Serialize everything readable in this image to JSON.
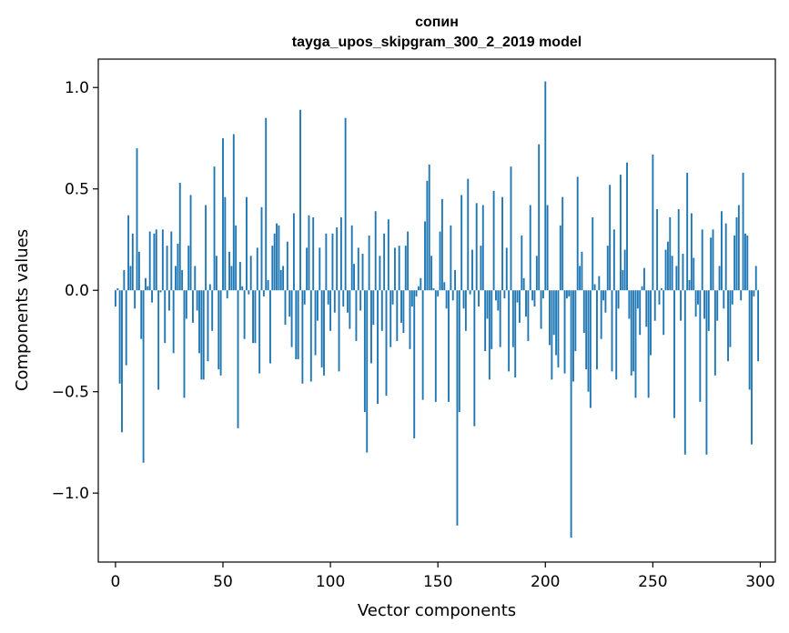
{
  "chart_data": {
    "type": "bar",
    "title": "сопин",
    "subtitle": "tayga_upos_skipgram_300_2_2019 model",
    "xlabel": "Vector components",
    "ylabel": "Components values",
    "xlim": [
      -8,
      307
    ],
    "ylim": [
      -1.34,
      1.14
    ],
    "xticks": [
      0,
      50,
      100,
      150,
      200,
      250,
      300
    ],
    "xtick_labels": [
      "0",
      "50",
      "100",
      "150",
      "200",
      "250",
      "300"
    ],
    "yticks": [
      -1.0,
      -0.5,
      0.0,
      0.5,
      1.0
    ],
    "ytick_labels": [
      "−1.0",
      "−0.5",
      "0.0",
      "0.5",
      "1.0"
    ],
    "grid": false,
    "bar_color": "#1f77b4",
    "x": "0..299",
    "values": [
      -0.08,
      0.01,
      -0.46,
      -0.7,
      0.1,
      -0.37,
      0.37,
      0.12,
      0.28,
      -0.09,
      0.7,
      0.19,
      -0.24,
      -0.85,
      0.06,
      0.02,
      0.29,
      -0.06,
      0.28,
      0.3,
      -0.49,
      -0.01,
      0.3,
      -0.26,
      0.22,
      -0.1,
      0.29,
      -0.31,
      0.12,
      0.23,
      0.53,
      0.1,
      -0.53,
      -0.14,
      0.22,
      0.47,
      -0.16,
      0.12,
      -0.1,
      -0.31,
      -0.44,
      -0.44,
      0.42,
      -0.35,
      0.03,
      -0.2,
      0.61,
      0.17,
      -0.39,
      -0.42,
      0.75,
      0.46,
      -0.04,
      0.19,
      0.12,
      0.77,
      0.32,
      -0.68,
      0.14,
      0.02,
      -0.24,
      0.46,
      -0.02,
      0.17,
      -0.26,
      -0.26,
      0.21,
      -0.41,
      0.41,
      -0.03,
      0.85,
      0.05,
      -0.36,
      0.22,
      0.28,
      0.33,
      0.32,
      0.1,
      0.12,
      -0.17,
      0.24,
      -0.13,
      -0.28,
      0.38,
      -0.34,
      -0.34,
      0.89,
      -0.46,
      -0.07,
      0.21,
      0.37,
      -0.45,
      0.36,
      -0.32,
      -0.15,
      0.21,
      -0.38,
      -0.42,
      0.28,
      -0.07,
      -0.2,
      0.28,
      -0.11,
      0.31,
      -0.4,
      0.36,
      -0.08,
      0.85,
      -0.11,
      -0.19,
      0.32,
      0.13,
      -0.25,
      0.21,
      -0.1,
      0.18,
      -0.6,
      -0.8,
      0.27,
      -0.36,
      -0.17,
      0.39,
      -0.56,
      0.17,
      -0.2,
      0.28,
      -0.52,
      0.35,
      -0.28,
      -0.07,
      0.21,
      -0.25,
      0.22,
      -0.16,
      -0.21,
      0.22,
      0.29,
      -0.29,
      -0.08,
      -0.73,
      -0.03,
      0.02,
      0.06,
      -0.54,
      0.34,
      0.54,
      0.62,
      0.17,
      0.01,
      -0.55,
      -0.03,
      0.29,
      0.45,
      0.04,
      -0.09,
      -0.55,
      0.32,
      -0.05,
      0.1,
      -1.16,
      -0.6,
      0.47,
      -0.09,
      -0.2,
      0.55,
      -0.02,
      0.2,
      -0.67,
      0.43,
      -0.08,
      0.22,
      0.42,
      -0.3,
      -0.14,
      -0.44,
      -0.29,
      0.49,
      -0.05,
      -0.1,
      -0.28,
      0.46,
      -0.04,
      0.21,
      -0.4,
      0.61,
      -0.28,
      -0.43,
      -0.06,
      -0.16,
      0.27,
      0.06,
      -0.13,
      -0.25,
      0.42,
      -0.05,
      -0.08,
      0.17,
      0.72,
      -0.19,
      -0.04,
      1.03,
      0.42,
      -0.27,
      -0.44,
      -0.22,
      -0.32,
      -0.38,
      0.32,
      0.46,
      -0.41,
      -0.04,
      -0.03,
      -1.22,
      -0.45,
      -0.3,
      0.56,
      0.12,
      0.19,
      -0.21,
      -0.39,
      -0.5,
      -0.58,
      0.36,
      0.03,
      -0.39,
      0.07,
      -0.24,
      -0.05,
      -0.11,
      0.22,
      0.52,
      -0.4,
      0.3,
      -0.44,
      -0.09,
      0.57,
      0.1,
      0.2,
      0.63,
      -0.14,
      -0.42,
      -0.4,
      -0.53,
      -0.09,
      -0.22,
      0.02,
      0.11,
      -0.18,
      -0.53,
      -0.32,
      0.67,
      -0.15,
      0.4,
      -0.07,
      0.01,
      -0.22,
      0.2,
      0.24,
      0.36,
      0.17,
      -0.63,
      0.12,
      0.4,
      -0.15,
      0.18,
      -0.81,
      0.58,
      0.05,
      0.38,
      0.16,
      -0.13,
      -0.07,
      -0.55,
      0.3,
      -0.14,
      -0.81,
      -0.2,
      0.26,
      0.3,
      -0.42,
      -0.15,
      0.12,
      0.39,
      -0.09,
      0.33,
      -0.35,
      -0.28,
      -0.07,
      0.27,
      0.36,
      0.42,
      -0.05,
      0.58,
      0.28,
      0.27,
      -0.49,
      -0.76,
      -0.03,
      0.12,
      -0.35
    ]
  }
}
